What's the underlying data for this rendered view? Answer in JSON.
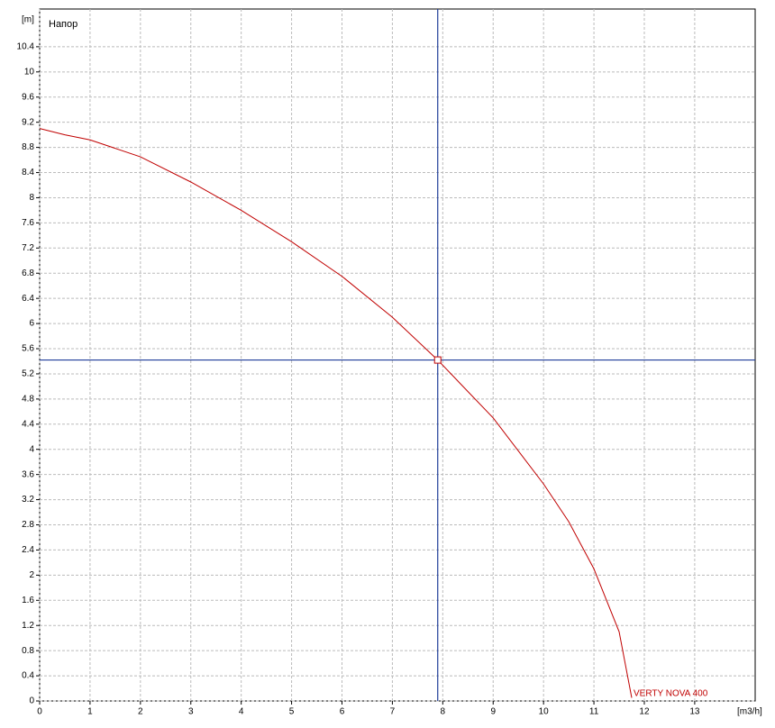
{
  "chart_data": {
    "type": "line",
    "y_label": "Напор",
    "y_unit": "[m]",
    "x_unit": "[m3/h]",
    "x": [
      0,
      0.5,
      1,
      2,
      3,
      4,
      5,
      6,
      7,
      7.9,
      9,
      10,
      10.5,
      11,
      11.5,
      11.75
    ],
    "series": [
      {
        "name": "VERTY NOVA 400",
        "color": "#c00000",
        "values": [
          9.1,
          9.0,
          8.92,
          8.65,
          8.25,
          7.8,
          7.3,
          6.75,
          6.1,
          5.42,
          4.5,
          3.45,
          2.85,
          2.1,
          1.1,
          0.05
        ]
      }
    ],
    "operating_point": {
      "x": 7.9,
      "y": 5.42,
      "color": "#1f3c99"
    },
    "xlim": [
      0,
      14.2
    ],
    "ylim": [
      0,
      11
    ],
    "xticks": [
      0,
      1,
      2,
      3,
      4,
      5,
      6,
      7,
      8,
      9,
      10,
      11,
      12,
      13
    ],
    "yticks": [
      0,
      0.4,
      0.8,
      1.2,
      1.6,
      2,
      2.4,
      2.8,
      3.2,
      3.6,
      4,
      4.4,
      4.8,
      5.2,
      5.6,
      6,
      6.4,
      6.8,
      7.2,
      7.6,
      8,
      8.4,
      8.8,
      9.2,
      9.6,
      10,
      10.4
    ],
    "grid": true
  }
}
